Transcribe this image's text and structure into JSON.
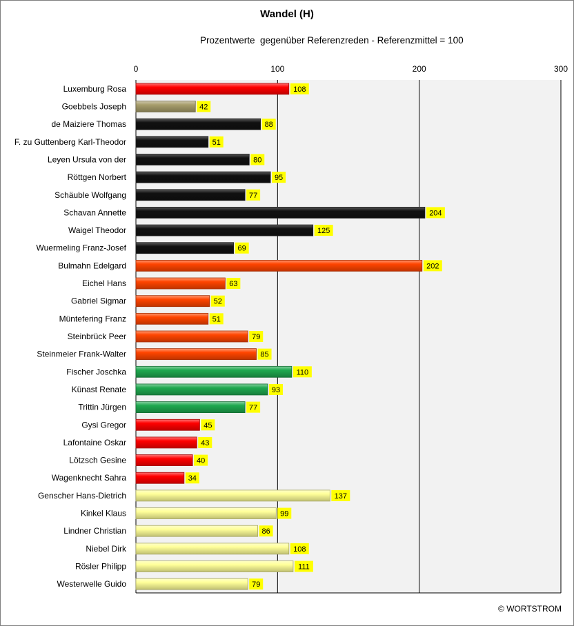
{
  "chart_data": {
    "type": "bar",
    "orientation": "horizontal",
    "title": "Wandel (H)",
    "subtitle": "Prozentwerte  gegenüber Referenzreden - Referenzmittel = 100",
    "xlim": [
      0,
      300
    ],
    "x_ticks": [
      "0",
      "100",
      "200",
      "300"
    ],
    "grid": true,
    "categories": [
      "Luxemburg Rosa",
      "Goebbels Joseph",
      "de Maiziere Thomas",
      "F. zu Guttenberg Karl-Theodor",
      "Leyen Ursula von der",
      "Röttgen Norbert",
      "Schäuble Wolfgang",
      "Schavan Annette",
      "Waigel Theodor",
      "Wuermeling Franz-Josef",
      "Bulmahn Edelgard",
      "Eichel Hans",
      "Gabriel Sigmar",
      "Müntefering Franz",
      "Steinbrück Peer",
      "Steinmeier Frank-Walter",
      "Fischer Joschka",
      "Künast Renate",
      "Trittin Jürgen",
      "Gysi Gregor",
      "Lafontaine Oskar",
      "Lötzsch Gesine",
      "Wagenknecht Sahra",
      "Genscher Hans-Dietrich",
      "Kinkel Klaus",
      "Lindner Christian",
      "Niebel Dirk",
      "Rösler Philipp",
      "Westerwelle Guido"
    ],
    "values": [
      108,
      42,
      88,
      51,
      80,
      95,
      77,
      204,
      125,
      69,
      202,
      63,
      52,
      51,
      79,
      85,
      110,
      93,
      77,
      45,
      43,
      40,
      34,
      137,
      99,
      86,
      108,
      111,
      79
    ],
    "colors": [
      "#ff0000",
      "#a79d6b",
      "#111111",
      "#111111",
      "#111111",
      "#111111",
      "#111111",
      "#111111",
      "#111111",
      "#111111",
      "#ff4500",
      "#ff4500",
      "#ff4500",
      "#ff4500",
      "#ff4500",
      "#ff4500",
      "#1fa84f",
      "#1fa84f",
      "#1fa84f",
      "#ff0000",
      "#ff0000",
      "#ff0000",
      "#ff0000",
      "#ffff99",
      "#ffff99",
      "#ffff99",
      "#ffff99",
      "#ffff99",
      "#ffff99"
    ],
    "label_background": "#ffff00",
    "plot_background": "#f2f2f2"
  },
  "credit": "© WORTSTROM"
}
